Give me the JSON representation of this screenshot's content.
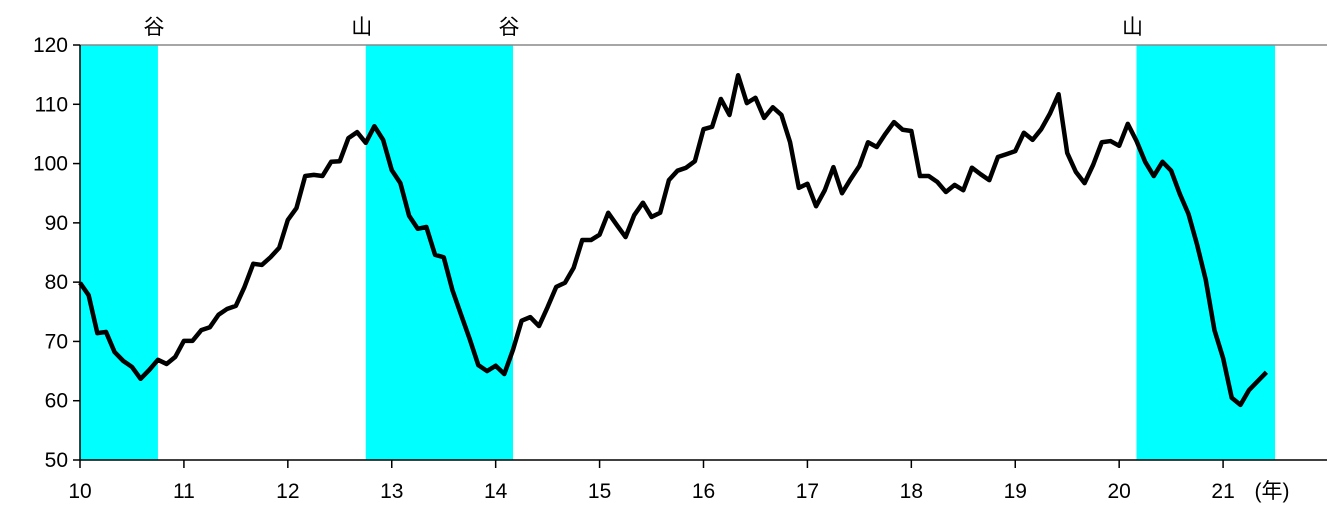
{
  "chart_data": {
    "type": "line",
    "x_label": "(年)",
    "xlim": [
      10,
      22
    ],
    "xticks": [
      10,
      11,
      12,
      13,
      14,
      15,
      16,
      17,
      18,
      19,
      20,
      21
    ],
    "ylim": [
      50,
      120
    ],
    "yticks": [
      50,
      60,
      70,
      80,
      90,
      100,
      110,
      120
    ],
    "bands": [
      {
        "start": 10,
        "end": 10.75,
        "color": "#00ffff"
      },
      {
        "start": 12.75,
        "end": 14.167,
        "color": "#00ffff"
      },
      {
        "start": 20.167,
        "end": 21.5,
        "color": "#00ffff"
      }
    ],
    "annotations": [
      {
        "text": "谷",
        "x": 10.75
      },
      {
        "text": "山",
        "x": 12.75
      },
      {
        "text": "谷",
        "x": 14.167
      },
      {
        "text": "山",
        "x": 20.167
      }
    ],
    "series": [
      {
        "color": "#000000",
        "x": [
          10,
          10.083,
          10.167,
          10.25,
          10.333,
          10.417,
          10.5,
          10.583,
          10.667,
          10.75,
          10.833,
          10.917,
          11,
          11.083,
          11.167,
          11.25,
          11.333,
          11.417,
          11.5,
          11.583,
          11.667,
          11.75,
          11.833,
          11.917,
          12,
          12.083,
          12.167,
          12.25,
          12.333,
          12.417,
          12.5,
          12.583,
          12.667,
          12.75,
          12.833,
          12.917,
          13,
          13.083,
          13.167,
          13.25,
          13.333,
          13.417,
          13.5,
          13.583,
          13.667,
          13.75,
          13.833,
          13.917,
          14,
          14.083,
          14.167,
          14.25,
          14.333,
          14.417,
          14.5,
          14.583,
          14.667,
          14.75,
          14.833,
          14.917,
          15,
          15.083,
          15.167,
          15.25,
          15.333,
          15.417,
          15.5,
          15.583,
          15.667,
          15.75,
          15.833,
          15.917,
          16,
          16.083,
          16.167,
          16.25,
          16.333,
          16.417,
          16.5,
          16.583,
          16.667,
          16.75,
          16.833,
          16.917,
          17,
          17.083,
          17.167,
          17.25,
          17.333,
          17.417,
          17.5,
          17.583,
          17.667,
          17.75,
          17.833,
          17.917,
          18,
          18.083,
          18.167,
          18.25,
          18.333,
          18.417,
          18.5,
          18.583,
          18.667,
          18.75,
          18.833,
          18.917,
          19,
          19.083,
          19.167,
          19.25,
          19.333,
          19.417,
          19.5,
          19.583,
          19.667,
          19.75,
          19.833,
          19.917,
          20,
          20.083,
          20.167,
          20.25,
          20.333,
          20.417,
          20.5,
          20.583,
          20.667,
          20.75,
          20.833,
          20.917,
          21,
          21.083,
          21.167,
          21.25,
          21.333,
          21.417
        ],
        "values": [
          79.9,
          77.8,
          71.4,
          71.6,
          68.2,
          66.7,
          65.7,
          63.7,
          65.2,
          66.9,
          66.2,
          67.4,
          70.1,
          70.1,
          71.9,
          72.4,
          74.5,
          75.5,
          76.0,
          79.2,
          83.1,
          82.9,
          84.2,
          85.8,
          90.5,
          92.5,
          97.9,
          98.1,
          97.9,
          100.3,
          100.4,
          104.3,
          105.3,
          103.5,
          106.3,
          104.0,
          98.9,
          96.7,
          91.2,
          89.0,
          89.3,
          84.6,
          84.2,
          78.7,
          74.5,
          70.4,
          66.0,
          65.0,
          65.9,
          64.5,
          68.6,
          73.5,
          74.1,
          72.6,
          75.8,
          79.2,
          79.9,
          82.4,
          87.1,
          87.1,
          88.0,
          91.7,
          89.6,
          87.6,
          91.3,
          93.4,
          91.0,
          91.7,
          97.2,
          98.8,
          99.3,
          100.4,
          105.8,
          106.2,
          110.9,
          108.2,
          114.9,
          110.2,
          111.1,
          107.7,
          109.5,
          108.2,
          103.6,
          95.9,
          96.6,
          92.8,
          95.5,
          99.4,
          95.0,
          97.4,
          99.6,
          103.6,
          102.8,
          105.0,
          107.0,
          105.7,
          105.5,
          97.9,
          97.9,
          96.9,
          95.2,
          96.4,
          95.5,
          99.3,
          98.2,
          97.2,
          101.1,
          101.6,
          102.1,
          105.2,
          104.0,
          105.8,
          108.4,
          111.7,
          101.8,
          98.6,
          96.7,
          99.8,
          103.6,
          103.8,
          103.0,
          106.7,
          103.8,
          100.3,
          97.9,
          100.3,
          98.8,
          94.9,
          91.5,
          86.3,
          80.4,
          71.9,
          67.2,
          60.5,
          59.3,
          61.8,
          63.3,
          64.8
        ]
      }
    ]
  }
}
